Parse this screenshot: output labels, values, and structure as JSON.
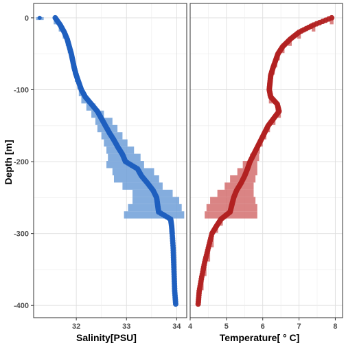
{
  "chart_data": [
    {
      "type": "scatter",
      "panel": "salinity",
      "xlabel": "Salinity[PSU]",
      "ylabel": "Depth [m]",
      "xlim": [
        31.15,
        34.2
      ],
      "ylim": [
        -417,
        20
      ],
      "x_ticks": [
        "32",
        "33",
        "34"
      ],
      "x_tick_values": [
        32,
        33,
        34
      ],
      "y_ticks": [
        "0",
        "-100",
        "-200",
        "-300",
        "-400"
      ],
      "y_tick_values": [
        0,
        -100,
        -200,
        -300,
        -400
      ],
      "grid": true,
      "color": "#1f5fbf",
      "band_color": "#6f9fd8",
      "series": [
        {
          "depth": [
            0,
            -10,
            -20,
            -30,
            -40,
            -50,
            -60,
            -70,
            -80,
            -90,
            -100,
            -110,
            -120,
            -130,
            -140,
            -150,
            -160,
            -170,
            -180,
            -190,
            -200,
            -210,
            -220,
            -230,
            -240,
            -250,
            -260,
            -270,
            -280,
            -290,
            -300,
            -320,
            -340,
            -360,
            -380,
            -398
          ],
          "mean": [
            31.58,
            31.68,
            31.76,
            31.82,
            31.86,
            31.9,
            31.93,
            31.96,
            32.0,
            32.05,
            32.1,
            32.18,
            32.3,
            32.42,
            32.5,
            32.58,
            32.66,
            32.75,
            32.83,
            32.92,
            32.98,
            33.22,
            33.3,
            33.42,
            33.53,
            33.6,
            33.62,
            33.64,
            33.88,
            33.9,
            33.91,
            33.93,
            33.94,
            33.95,
            33.96,
            33.98
          ],
          "lower": [
            31.55,
            31.65,
            31.73,
            31.79,
            31.83,
            31.87,
            31.9,
            31.93,
            31.97,
            32.02,
            32.05,
            32.1,
            32.2,
            32.3,
            32.38,
            32.42,
            32.5,
            32.55,
            32.6,
            32.63,
            32.6,
            32.72,
            32.75,
            32.92,
            33.12,
            33.12,
            33.03,
            32.95,
            33.85,
            33.87,
            33.88,
            33.9,
            33.91,
            33.92,
            33.93,
            33.95
          ],
          "upper": [
            31.61,
            31.71,
            31.79,
            31.85,
            31.89,
            31.93,
            31.96,
            31.99,
            32.03,
            32.08,
            32.15,
            32.24,
            32.38,
            32.55,
            32.72,
            32.82,
            32.92,
            33.02,
            33.15,
            33.28,
            33.35,
            33.55,
            33.65,
            33.72,
            33.92,
            34.05,
            34.1,
            34.15,
            33.91,
            33.93,
            33.94,
            33.96,
            33.97,
            33.98,
            33.99,
            34.01
          ]
        },
        {
          "depth": [
            0
          ],
          "mean": [
            31.27
          ],
          "lower": [
            31.2
          ],
          "upper": [
            31.35
          ]
        }
      ]
    },
    {
      "type": "scatter",
      "panel": "temperature",
      "xlabel": "Temperature[ ° C]",
      "ylabel": "",
      "xlim": [
        4.0,
        8.2
      ],
      "ylim": [
        -417,
        20
      ],
      "x_ticks": [
        "4",
        "5",
        "6",
        "7",
        "8"
      ],
      "x_tick_values": [
        4,
        5,
        6,
        7,
        8
      ],
      "y_ticks": [],
      "grid": true,
      "color": "#b22222",
      "band_color": "#d46f6f",
      "series": [
        {
          "depth": [
            0,
            -10,
            -20,
            -30,
            -40,
            -50,
            -60,
            -70,
            -80,
            -90,
            -100,
            -110,
            -120,
            -130,
            -140,
            -150,
            -160,
            -170,
            -180,
            -190,
            -200,
            -210,
            -220,
            -230,
            -240,
            -250,
            -260,
            -270,
            -280,
            -290,
            -300,
            -320,
            -340,
            -360,
            -380,
            -398
          ],
          "mean": [
            7.9,
            7.4,
            7.0,
            6.75,
            6.55,
            6.42,
            6.35,
            6.28,
            6.22,
            6.2,
            6.18,
            6.22,
            6.4,
            6.45,
            6.3,
            6.15,
            6.05,
            5.95,
            5.85,
            5.75,
            5.65,
            5.58,
            5.5,
            5.4,
            5.28,
            5.2,
            5.15,
            5.1,
            4.85,
            4.72,
            4.6,
            4.5,
            4.4,
            4.32,
            4.25,
            4.22
          ],
          "lower": [
            7.85,
            7.35,
            6.95,
            6.7,
            6.5,
            6.37,
            6.3,
            6.23,
            6.17,
            6.15,
            6.13,
            6.17,
            6.35,
            6.4,
            6.25,
            6.1,
            6.0,
            5.9,
            5.8,
            5.65,
            5.45,
            5.3,
            5.1,
            4.95,
            4.75,
            4.55,
            4.45,
            4.4,
            4.8,
            4.67,
            4.55,
            4.45,
            4.35,
            4.27,
            4.2,
            4.17
          ],
          "upper": [
            7.95,
            7.45,
            7.05,
            6.8,
            6.6,
            6.47,
            6.4,
            6.33,
            6.27,
            6.25,
            6.23,
            6.27,
            6.45,
            6.5,
            6.35,
            6.2,
            6.1,
            6.0,
            5.92,
            5.9,
            5.85,
            5.85,
            5.8,
            5.75,
            5.75,
            5.8,
            5.85,
            5.85,
            4.9,
            4.77,
            4.65,
            4.55,
            4.45,
            4.37,
            4.3,
            4.27
          ]
        }
      ]
    }
  ]
}
